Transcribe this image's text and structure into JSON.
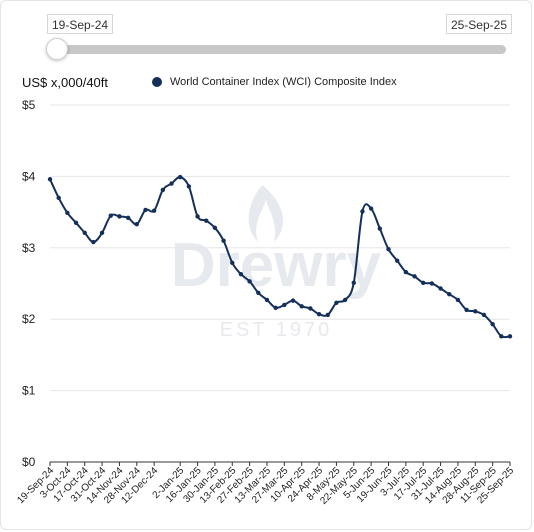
{
  "range_slider": {
    "start_label": "19-Sep-24",
    "end_label": "25-Sep-25"
  },
  "unit_label": "US$ x,000/40ft",
  "watermark": {
    "brand": "Drewry",
    "tagline": "EST 1970"
  },
  "colors": {
    "series": "#14305a",
    "grid": "#e6e6e6",
    "axis": "#333333"
  },
  "chart_data": {
    "type": "line",
    "title": "",
    "xlabel": "",
    "ylabel": "US$ x,000/40ft",
    "ylim": [
      0,
      5
    ],
    "y_ticks": [
      {
        "value": 0,
        "label": "$0"
      },
      {
        "value": 1,
        "label": "$1"
      },
      {
        "value": 2,
        "label": "$2"
      },
      {
        "value": 3,
        "label": "$3"
      },
      {
        "value": 4,
        "label": "$4"
      },
      {
        "value": 5,
        "label": "$5"
      }
    ],
    "grid": true,
    "legend_position": "top",
    "x_tick_labels": [
      "19-Sep-24",
      "3-Oct-24",
      "17-Oct-24",
      "31-Oct-24",
      "14-Nov-24",
      "28-Nov-24",
      "12-Dec-24",
      "2-Jan-25",
      "16-Jan-25",
      "30-Jan-25",
      "13-Feb-25",
      "27-Feb-25",
      "13-Mar-25",
      "27-Mar-25",
      "10-Apr-25",
      "24-Apr-25",
      "8-May-25",
      "22-May-25",
      "5-Jun-25",
      "19-Jun-25",
      "3-Jul-25",
      "17-Jul-25",
      "31-Jul-25",
      "14-Aug-25",
      "28-Aug-25",
      "11-Sep-25",
      "25-Sep-25"
    ],
    "series": [
      {
        "name": "World Container Index (WCI) Composite Index",
        "x": [
          "19-Sep-24",
          "26-Sep-24",
          "3-Oct-24",
          "10-Oct-24",
          "17-Oct-24",
          "24-Oct-24",
          "31-Oct-24",
          "7-Nov-24",
          "14-Nov-24",
          "21-Nov-24",
          "28-Nov-24",
          "5-Dec-24",
          "12-Dec-24",
          "19-Dec-24",
          "26-Dec-24",
          "2-Jan-25",
          "9-Jan-25",
          "16-Jan-25",
          "23-Jan-25",
          "30-Jan-25",
          "6-Feb-25",
          "13-Feb-25",
          "20-Feb-25",
          "27-Feb-25",
          "6-Mar-25",
          "13-Mar-25",
          "20-Mar-25",
          "27-Mar-25",
          "3-Apr-25",
          "10-Apr-25",
          "17-Apr-25",
          "24-Apr-25",
          "1-May-25",
          "8-May-25",
          "15-May-25",
          "22-May-25",
          "29-May-25",
          "5-Jun-25",
          "12-Jun-25",
          "19-Jun-25",
          "26-Jun-25",
          "3-Jul-25",
          "10-Jul-25",
          "17-Jul-25",
          "24-Jul-25",
          "31-Jul-25",
          "7-Aug-25",
          "14-Aug-25",
          "21-Aug-25",
          "28-Aug-25",
          "4-Sep-25",
          "11-Sep-25",
          "18-Sep-25",
          "25-Sep-25"
        ],
        "values": [
          3.96,
          3.7,
          3.49,
          3.35,
          3.21,
          3.08,
          3.21,
          3.45,
          3.44,
          3.42,
          3.33,
          3.53,
          3.52,
          3.81,
          3.9,
          3.99,
          3.86,
          3.44,
          3.38,
          3.28,
          3.1,
          2.79,
          2.63,
          2.53,
          2.37,
          2.27,
          2.16,
          2.2,
          2.26,
          2.18,
          2.15,
          2.07,
          2.06,
          2.23,
          2.27,
          2.51,
          3.51,
          3.55,
          3.27,
          2.98,
          2.82,
          2.66,
          2.6,
          2.51,
          2.5,
          2.43,
          2.35,
          2.27,
          2.13,
          2.11,
          2.06,
          1.93,
          1.76,
          1.76
        ]
      }
    ]
  }
}
